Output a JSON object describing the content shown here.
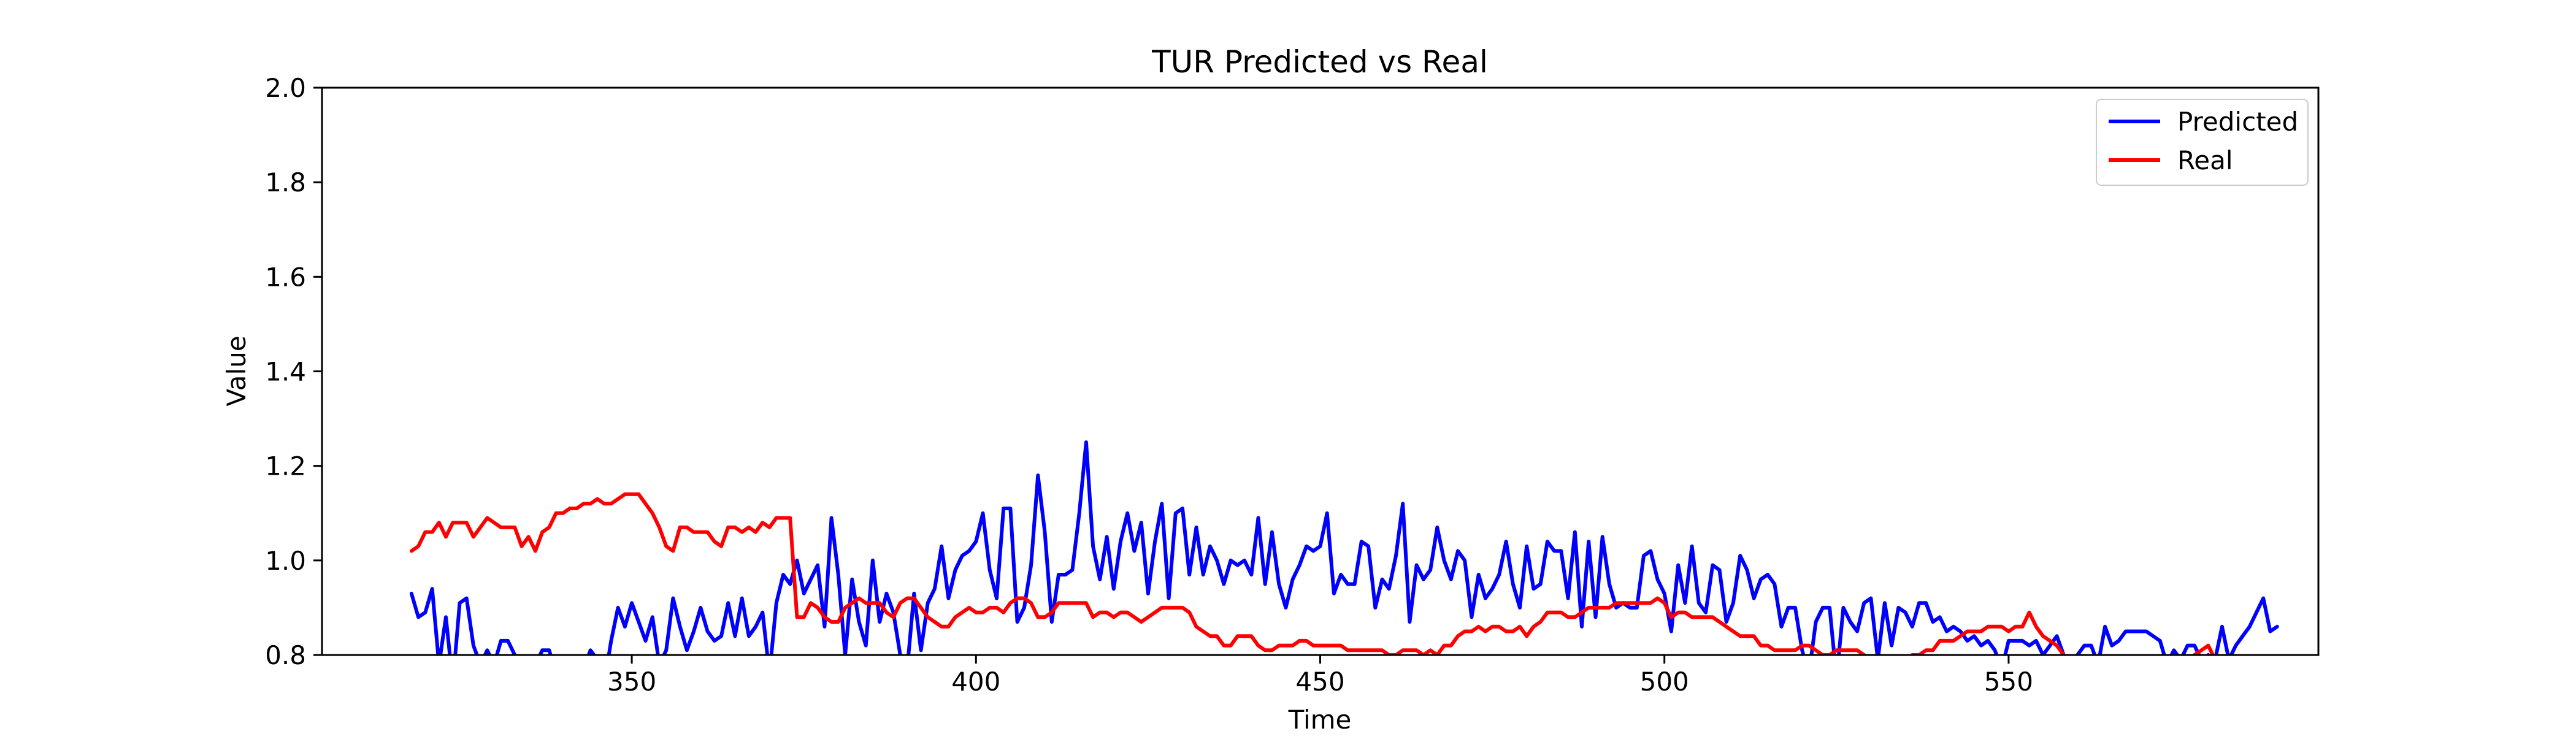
{
  "chart_data": {
    "type": "line",
    "title": "TUR Predicted vs Real",
    "xlabel": "Time",
    "ylabel": "Value",
    "xlim": [
      305,
      595
    ],
    "ylim": [
      0.8,
      2.0
    ],
    "xticks": [
      350,
      400,
      450,
      500,
      550
    ],
    "yticks": [
      0.8,
      1.0,
      1.2,
      1.4,
      1.6,
      1.8,
      2.0
    ],
    "xtick_labels": [
      "350",
      "400",
      "450",
      "500",
      "550"
    ],
    "ytick_labels": [
      "0.8",
      "1.0",
      "1.2",
      "1.4",
      "1.6",
      "1.8",
      "2.0"
    ],
    "grid": false,
    "legend": "top-right",
    "series": [
      {
        "name": "Predicted",
        "color": "#0000ff",
        "x_start": 318,
        "x_step": 1,
        "values": [
          0.93,
          0.88,
          0.89,
          0.94,
          0.78,
          0.88,
          0.74,
          0.91,
          0.92,
          0.82,
          0.78,
          0.81,
          0.78,
          0.83,
          0.83,
          0.8,
          0.76,
          0.72,
          0.78,
          0.81,
          0.81,
          0.76,
          0.74,
          0.79,
          0.75,
          0.77,
          0.81,
          0.79,
          0.74,
          0.83,
          0.9,
          0.86,
          0.91,
          0.87,
          0.83,
          0.88,
          0.78,
          0.81,
          0.92,
          0.86,
          0.81,
          0.85,
          0.9,
          0.85,
          0.83,
          0.84,
          0.91,
          0.84,
          0.92,
          0.84,
          0.86,
          0.89,
          0.76,
          0.91,
          0.97,
          0.95,
          1.0,
          0.93,
          0.96,
          0.99,
          0.86,
          1.09,
          0.97,
          0.8,
          0.96,
          0.87,
          0.82,
          1.0,
          0.87,
          0.93,
          0.89,
          0.8,
          0.77,
          0.93,
          0.81,
          0.91,
          0.94,
          1.03,
          0.92,
          0.98,
          1.01,
          1.02,
          1.04,
          1.1,
          0.98,
          0.92,
          1.11,
          1.11,
          0.87,
          0.9,
          0.99,
          1.18,
          1.06,
          0.87,
          0.97,
          0.97,
          0.98,
          1.1,
          1.25,
          1.03,
          0.96,
          1.05,
          0.94,
          1.04,
          1.1,
          1.02,
          1.08,
          0.93,
          1.04,
          1.12,
          0.92,
          1.1,
          1.11,
          0.97,
          1.07,
          0.97,
          1.03,
          1.0,
          0.95,
          1.0,
          0.99,
          1.0,
          0.97,
          1.09,
          0.95,
          1.06,
          0.95,
          0.9,
          0.96,
          0.99,
          1.03,
          1.02,
          1.03,
          1.1,
          0.93,
          0.97,
          0.95,
          0.95,
          1.04,
          1.03,
          0.9,
          0.96,
          0.94,
          1.01,
          1.12,
          0.87,
          0.99,
          0.96,
          0.98,
          1.07,
          1.0,
          0.96,
          1.02,
          1.0,
          0.88,
          0.97,
          0.92,
          0.94,
          0.97,
          1.04,
          0.95,
          0.9,
          1.03,
          0.94,
          0.95,
          1.04,
          1.02,
          1.02,
          0.92,
          1.06,
          0.86,
          1.04,
          0.88,
          1.05,
          0.95,
          0.9,
          0.91,
          0.9,
          0.9,
          1.01,
          1.02,
          0.96,
          0.93,
          0.85,
          0.99,
          0.91,
          1.03,
          0.91,
          0.89,
          0.99,
          0.98,
          0.87,
          0.91,
          1.01,
          0.98,
          0.92,
          0.96,
          0.97,
          0.95,
          0.86,
          0.9,
          0.9,
          0.81,
          0.76,
          0.87,
          0.9,
          0.9,
          0.75,
          0.9,
          0.87,
          0.85,
          0.91,
          0.92,
          0.79,
          0.91,
          0.82,
          0.9,
          0.89,
          0.86,
          0.91,
          0.91,
          0.87,
          0.88,
          0.85,
          0.86,
          0.85,
          0.83,
          0.84,
          0.82,
          0.83,
          0.81,
          0.77,
          0.83,
          0.83,
          0.83,
          0.82,
          0.83,
          0.8,
          0.82,
          0.84,
          0.8,
          0.79,
          0.8,
          0.82,
          0.82,
          0.78,
          0.86,
          0.82,
          0.83,
          0.85,
          0.85,
          0.85,
          0.85,
          0.84,
          0.83,
          0.78,
          0.81,
          0.79,
          0.82,
          0.82,
          0.79,
          0.8,
          0.79,
          0.86,
          0.79,
          0.82,
          0.84,
          0.86,
          0.89,
          0.92,
          0.85,
          0.86
        ]
      },
      {
        "name": "Real",
        "color": "#ff0000",
        "x_start": 318,
        "x_step": 1,
        "values": [
          1.02,
          1.03,
          1.06,
          1.06,
          1.08,
          1.05,
          1.08,
          1.08,
          1.08,
          1.05,
          1.07,
          1.09,
          1.08,
          1.07,
          1.07,
          1.07,
          1.03,
          1.05,
          1.02,
          1.06,
          1.07,
          1.1,
          1.1,
          1.11,
          1.11,
          1.12,
          1.12,
          1.13,
          1.12,
          1.12,
          1.13,
          1.14,
          1.14,
          1.14,
          1.12,
          1.1,
          1.07,
          1.03,
          1.02,
          1.07,
          1.07,
          1.06,
          1.06,
          1.06,
          1.04,
          1.03,
          1.07,
          1.07,
          1.06,
          1.07,
          1.06,
          1.08,
          1.07,
          1.09,
          1.09,
          1.09,
          0.88,
          0.88,
          0.91,
          0.9,
          0.88,
          0.87,
          0.87,
          0.9,
          0.91,
          0.92,
          0.91,
          0.91,
          0.91,
          0.89,
          0.88,
          0.91,
          0.92,
          0.92,
          0.9,
          0.88,
          0.87,
          0.86,
          0.86,
          0.88,
          0.89,
          0.9,
          0.89,
          0.89,
          0.9,
          0.9,
          0.89,
          0.91,
          0.92,
          0.92,
          0.91,
          0.88,
          0.88,
          0.89,
          0.91,
          0.91,
          0.91,
          0.91,
          0.91,
          0.88,
          0.89,
          0.89,
          0.88,
          0.89,
          0.89,
          0.88,
          0.87,
          0.88,
          0.89,
          0.9,
          0.9,
          0.9,
          0.9,
          0.89,
          0.86,
          0.85,
          0.84,
          0.84,
          0.82,
          0.82,
          0.84,
          0.84,
          0.84,
          0.82,
          0.81,
          0.81,
          0.82,
          0.82,
          0.82,
          0.83,
          0.83,
          0.82,
          0.82,
          0.82,
          0.82,
          0.82,
          0.81,
          0.81,
          0.81,
          0.81,
          0.81,
          0.81,
          0.8,
          0.8,
          0.81,
          0.81,
          0.81,
          0.8,
          0.81,
          0.8,
          0.82,
          0.82,
          0.84,
          0.85,
          0.85,
          0.86,
          0.85,
          0.86,
          0.86,
          0.85,
          0.85,
          0.86,
          0.84,
          0.86,
          0.87,
          0.89,
          0.89,
          0.89,
          0.88,
          0.88,
          0.89,
          0.9,
          0.9,
          0.9,
          0.9,
          0.91,
          0.91,
          0.91,
          0.91,
          0.91,
          0.91,
          0.92,
          0.91,
          0.88,
          0.89,
          0.89,
          0.88,
          0.88,
          0.88,
          0.88,
          0.87,
          0.86,
          0.85,
          0.84,
          0.84,
          0.84,
          0.82,
          0.82,
          0.81,
          0.81,
          0.81,
          0.81,
          0.82,
          0.82,
          0.81,
          0.8,
          0.8,
          0.81,
          0.81,
          0.81,
          0.81,
          0.8,
          0.79,
          0.79,
          0.79,
          0.78,
          0.79,
          0.79,
          0.8,
          0.8,
          0.81,
          0.81,
          0.83,
          0.83,
          0.83,
          0.84,
          0.85,
          0.85,
          0.85,
          0.86,
          0.86,
          0.86,
          0.85,
          0.86,
          0.86,
          0.89,
          0.86,
          0.84,
          0.83,
          0.82,
          0.8,
          0.79,
          0.78,
          0.77,
          0.76,
          0.75,
          0.74,
          0.74,
          0.75,
          0.76,
          0.77,
          0.76,
          0.75,
          0.74,
          0.75,
          0.76,
          0.77,
          0.78,
          0.79,
          0.8,
          0.81,
          0.82,
          0.79,
          0.76,
          0.75,
          0.75,
          0.76,
          0.77,
          0.76,
          0.76
        ]
      }
    ]
  }
}
